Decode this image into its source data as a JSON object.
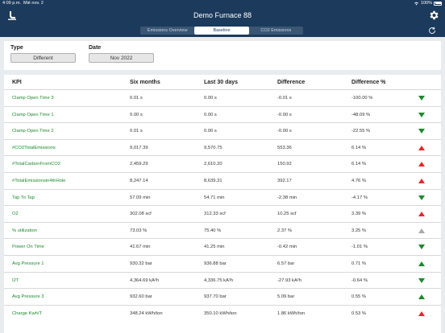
{
  "status": {
    "time": "4:09 p.m.",
    "date": "Mié nov. 2",
    "battery": "100%"
  },
  "header": {
    "title": "Demo Furnace 88"
  },
  "segments": [
    {
      "label": "Emissions Overview",
      "active": false
    },
    {
      "label": "Baseline",
      "active": true
    },
    {
      "label": "CO2 Emissions",
      "active": false
    }
  ],
  "filters": {
    "type_label": "Type",
    "type_value": "Different",
    "date_label": "Date",
    "date_value": "Nov 2022"
  },
  "table": {
    "headers": [
      "KPI",
      "Six months",
      "Last 30 days",
      "Difference",
      "Difference %"
    ],
    "rows": [
      {
        "kpi": "Clamp Open Time 3",
        "six": "0.01 s",
        "last": "0.00 s",
        "diff": "-0.01 s",
        "pct": "-100.00 %",
        "trend": "down-green"
      },
      {
        "kpi": "Clamp Open Time 1",
        "six": "0.00 s",
        "last": "0.00 s",
        "diff": "-0.00 s",
        "pct": "-48.09 %",
        "trend": "down-green"
      },
      {
        "kpi": "Clamp Open Time 2",
        "six": "0.01 s",
        "last": "0.00 s",
        "diff": "-0.00 s",
        "pct": "-22.55 %",
        "trend": "down-green"
      },
      {
        "kpi": "#CO2TotalEmissions",
        "six": "9,017.39",
        "last": "9,570.75",
        "diff": "553.36",
        "pct": "6.14 %",
        "trend": "up-red"
      },
      {
        "kpi": "#TotalCarbonFromCO2",
        "six": "2,459.29",
        "last": "2,610.20",
        "diff": "150.92",
        "pct": "6.14 %",
        "trend": "up-red"
      },
      {
        "kpi": "#TotalEmissionsin4thHole",
        "six": "8,247.14",
        "last": "8,639.31",
        "diff": "392.17",
        "pct": "4.76 %",
        "trend": "up-red"
      },
      {
        "kpi": "Tap To Tap",
        "six": "57.09 min",
        "last": "54.71 min",
        "diff": "-2.38 min",
        "pct": "-4.17 %",
        "trend": "down-green"
      },
      {
        "kpi": "O2",
        "six": "302.08 scf",
        "last": "312.33 scf",
        "diff": "10.25 scf",
        "pct": "3.39 %",
        "trend": "up-red"
      },
      {
        "kpi": "% utilization",
        "six": "73.03 %",
        "last": "75.40 %",
        "diff": "2.37 %",
        "pct": "3.25 %",
        "trend": "up-grey"
      },
      {
        "kpi": "Power On Time",
        "six": "41.67 min",
        "last": "41.25 min",
        "diff": "-0.42 min",
        "pct": "-1.01 %",
        "trend": "down-green"
      },
      {
        "kpi": "Avg Pressure 1",
        "six": "930.32 bar",
        "last": "936.88 bar",
        "diff": "6.57 bar",
        "pct": "0.71 %",
        "trend": "up-green"
      },
      {
        "kpi": "I2T",
        "six": "4,364.69 kA²h",
        "last": "4,336.75 kA²h",
        "diff": "-27.93 kA²h",
        "pct": "-0.64 %",
        "trend": "down-green"
      },
      {
        "kpi": "Avg Pressure 3",
        "six": "932.60 bar",
        "last": "937.70 bar",
        "diff": "5.09 bar",
        "pct": "0.55 %",
        "trend": "up-green"
      },
      {
        "kpi": "Charge Kwh/T",
        "six": "348.24 kWh/ton",
        "last": "350.10 kWh/ton",
        "diff": "1.86 kWh/ton",
        "pct": "0.53 %",
        "trend": "up-red"
      }
    ]
  }
}
